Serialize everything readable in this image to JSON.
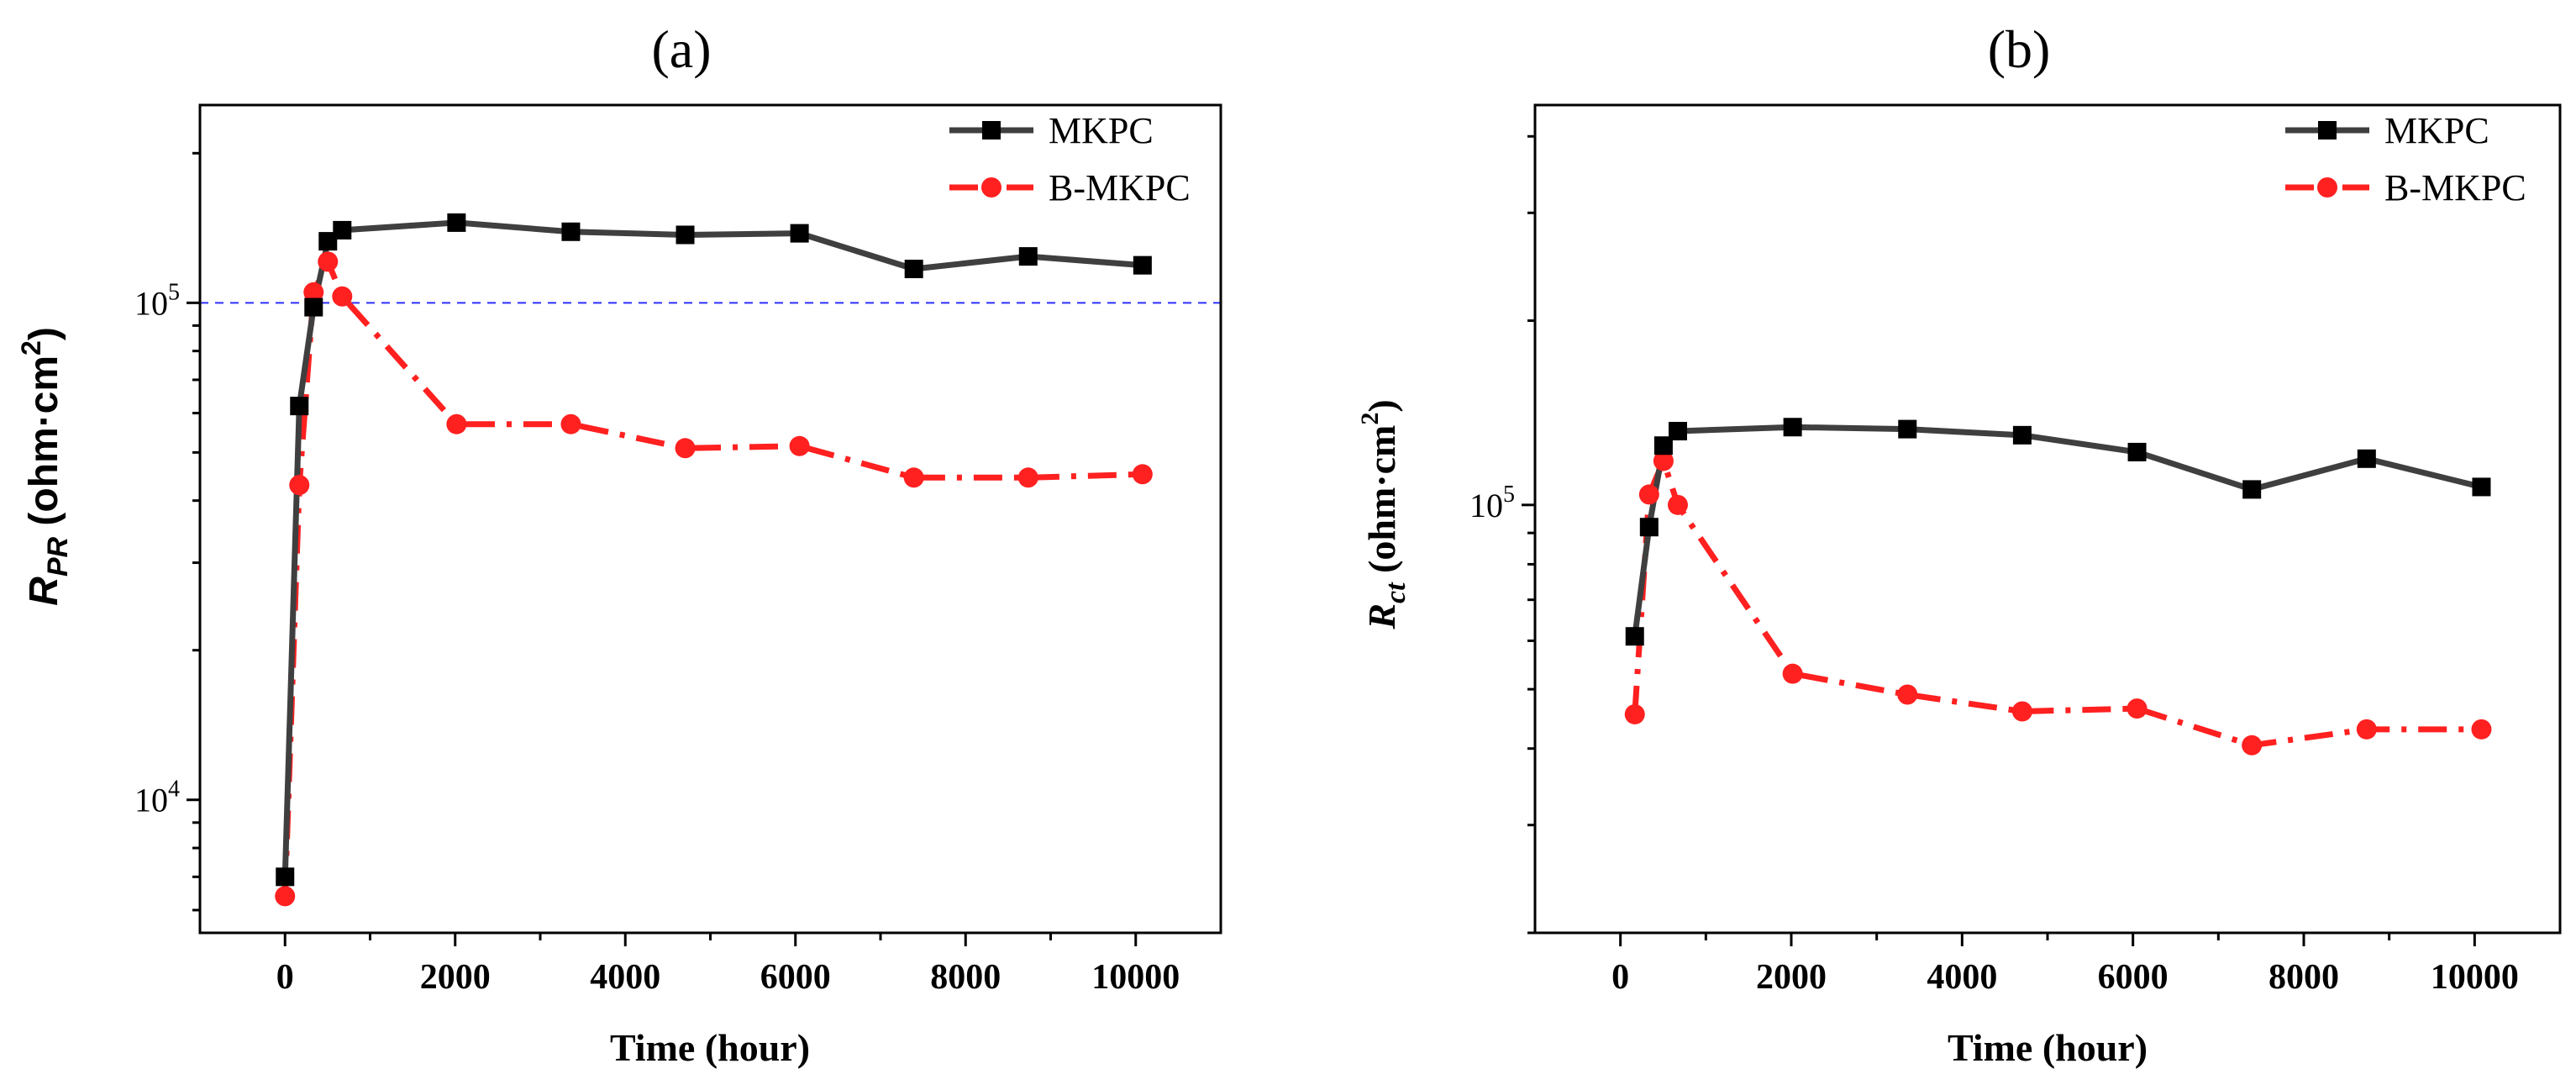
{
  "chart_data": [
    {
      "panel": "(a)",
      "title": "(a)",
      "type": "line",
      "xlabel": "Time (hour)",
      "ylabel_main": "R",
      "ylabel_sub": "PR",
      "ylabel_unit_open": " (ohm·cm",
      "ylabel_unit_sup": "2",
      "ylabel_unit_close": ")",
      "yscale": "log",
      "xlim": [
        -1000,
        11000
      ],
      "ylim": [
        5400,
        250000
      ],
      "xticks": [
        0,
        2000,
        4000,
        6000,
        8000,
        10000
      ],
      "xtick_labels": [
        "0",
        "2000",
        "4000",
        "6000",
        "8000",
        "10000"
      ],
      "ytick_major": [
        {
          "value": 10000,
          "base": "10",
          "exp": "4"
        },
        {
          "value": 100000,
          "base": "10",
          "exp": "5"
        }
      ],
      "reference_line": {
        "value": 100000,
        "color": "#2f2fff",
        "style": "dashed"
      },
      "legend_position": "top-right",
      "series": [
        {
          "name": "MKPC",
          "color": "#3f3f3f",
          "marker": "square",
          "line_style": "solid",
          "x": [
            0,
            168,
            336,
            504,
            672,
            2016,
            3360,
            4704,
            6048,
            7392,
            8736,
            10080
          ],
          "y": [
            7000,
            62000,
            98000,
            133000,
            140000,
            145000,
            139000,
            137000,
            138000,
            117000,
            124000,
            119000
          ]
        },
        {
          "name": "B-MKPC",
          "color": "#ff2020",
          "marker": "circle",
          "line_style": "dashdot",
          "x": [
            0,
            168,
            336,
            504,
            672,
            2016,
            3360,
            4704,
            6048,
            7392,
            8736,
            10080
          ],
          "y": [
            6400,
            43000,
            105000,
            121000,
            103000,
            57000,
            57000,
            51000,
            51500,
            44500,
            44500,
            45200
          ]
        }
      ]
    },
    {
      "panel": "(b)",
      "title": "(b)",
      "type": "line",
      "xlabel": "Time (hour)",
      "ylabel_main": "R",
      "ylabel_sub": "ct",
      "ylabel_unit_open": " (ohm·cm",
      "ylabel_unit_sup": "2",
      "ylabel_unit_close": ")",
      "yscale": "log",
      "xlim": [
        -1000,
        11000
      ],
      "ylim": [
        20000,
        450000
      ],
      "xticks": [
        0,
        2000,
        4000,
        6000,
        8000,
        10000
      ],
      "xtick_labels": [
        "0",
        "2000",
        "4000",
        "6000",
        "8000",
        "10000"
      ],
      "ytick_major": [
        {
          "value": 100000,
          "base": "10",
          "exp": "5"
        }
      ],
      "legend_position": "top-right",
      "series": [
        {
          "name": "MKPC",
          "color": "#3f3f3f",
          "marker": "square",
          "line_style": "solid",
          "x": [
            168,
            336,
            504,
            672,
            2016,
            3360,
            4704,
            6048,
            7392,
            8736,
            10080
          ],
          "y": [
            61000,
            92000,
            125000,
            132000,
            134000,
            133000,
            130000,
            122000,
            106000,
            119000,
            107000
          ]
        },
        {
          "name": "B-MKPC",
          "color": "#ff2020",
          "marker": "circle",
          "line_style": "dashdot",
          "x": [
            168,
            336,
            504,
            672,
            2016,
            3360,
            4704,
            6048,
            7392,
            8736,
            10080
          ],
          "y": [
            45500,
            104000,
            118000,
            100000,
            53000,
            49000,
            46000,
            46500,
            40500,
            43000,
            43000
          ]
        }
      ]
    }
  ]
}
